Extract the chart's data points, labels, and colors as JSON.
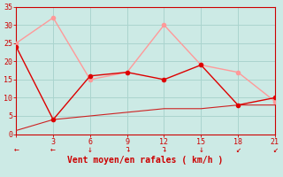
{
  "bg_color": "#cceae5",
  "grid_color": "#aad4ce",
  "line1_x": [
    0,
    3,
    6,
    9,
    12,
    15,
    18,
    21
  ],
  "line1_y": [
    24,
    4,
    16,
    17,
    15,
    19,
    8,
    10
  ],
  "line1_color": "#dd0000",
  "line1_lw": 1.0,
  "line2_x": [
    0,
    3,
    6,
    9,
    12,
    15,
    18,
    21
  ],
  "line2_y": [
    25,
    32,
    15,
    17,
    30,
    19,
    17,
    9
  ],
  "line2_color": "#ff9999",
  "line2_lw": 1.0,
  "line3_x": [
    0,
    3,
    21
  ],
  "line3_y": [
    24,
    4,
    10
  ],
  "line3_color": "#dd4444",
  "line3_lw": 0.8,
  "bottom_line_x": [
    0,
    3,
    6,
    9,
    12,
    15,
    18,
    21
  ],
  "bottom_line_y": [
    1,
    4,
    5,
    6,
    7,
    7,
    8,
    8
  ],
  "bottom_line_color": "#cc2222",
  "bottom_line_lw": 0.8,
  "wind_arrows": [
    "←",
    "←",
    "↓",
    "↴",
    "↴",
    "↓",
    "↙",
    "↙"
  ],
  "xlabel": "Vent moyen/en rafales ( km/h )",
  "xlabel_color": "#cc0000",
  "xlabel_fontsize": 7,
  "xlim": [
    0,
    21
  ],
  "ylim": [
    0,
    35
  ],
  "xticks": [
    0,
    3,
    6,
    9,
    12,
    15,
    18,
    21
  ],
  "yticks": [
    0,
    5,
    10,
    15,
    20,
    25,
    30,
    35
  ],
  "tick_color": "#cc0000",
  "tick_fontsize": 6,
  "marker_size": 3,
  "spine_color": "#cc0000"
}
